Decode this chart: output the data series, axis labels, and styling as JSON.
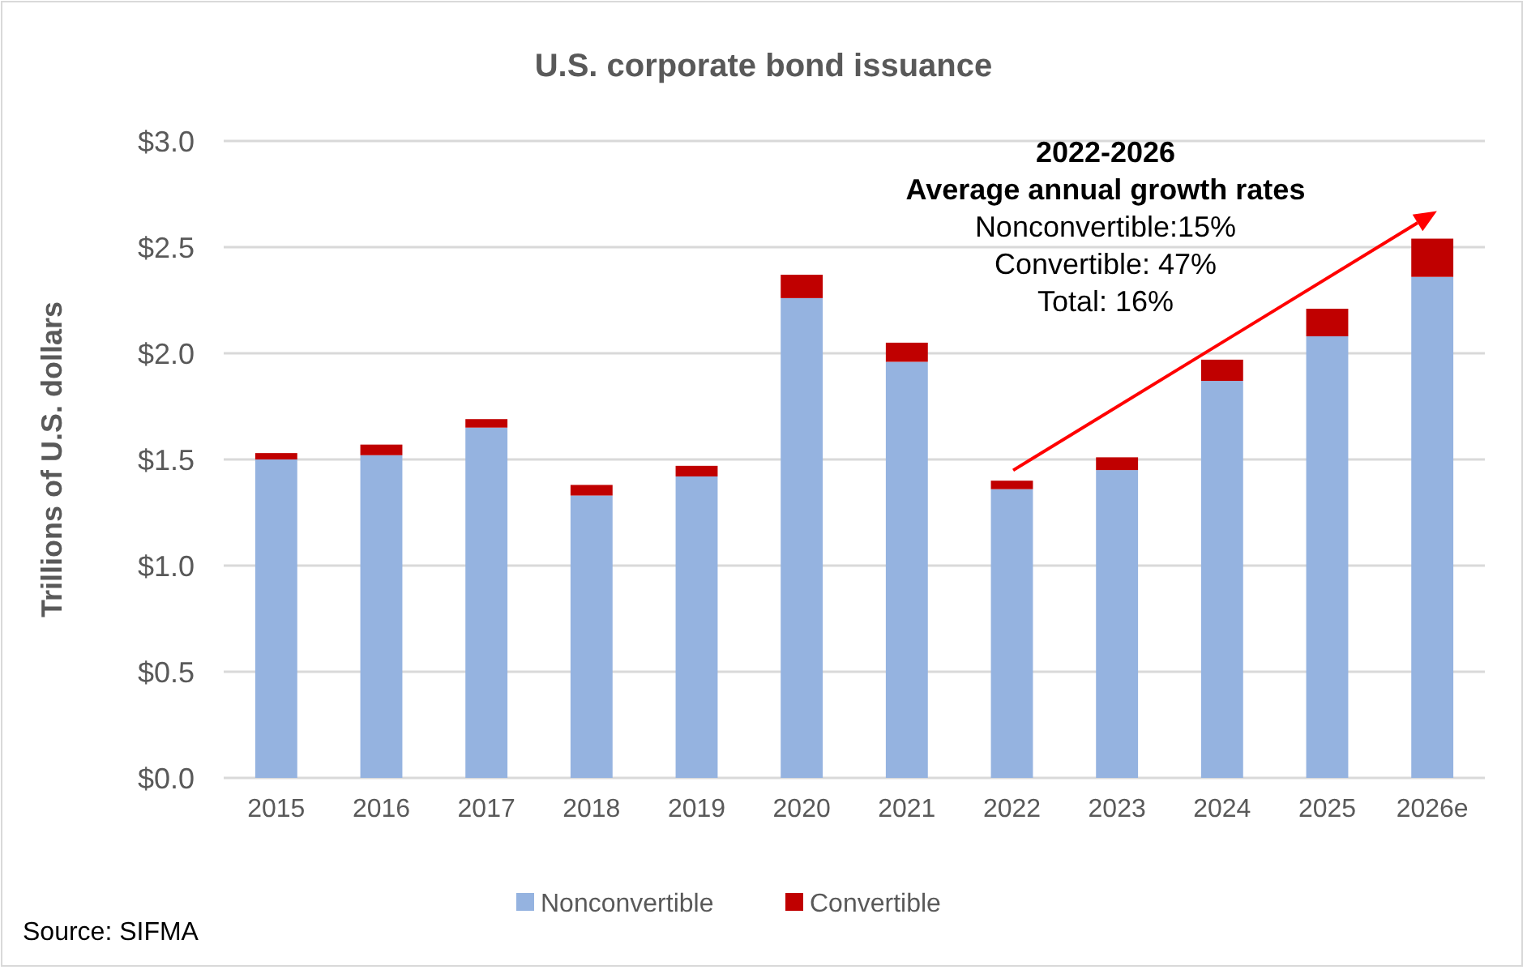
{
  "chart_data": {
    "type": "bar",
    "title": "U.S. corporate bond issuance",
    "ylabel": "Trillions of U.S. dollars",
    "stacked": true,
    "categories": [
      "2015",
      "2016",
      "2017",
      "2018",
      "2019",
      "2020",
      "2021",
      "2022",
      "2023",
      "2024",
      "2025",
      "2026e"
    ],
    "series": [
      {
        "name": "Nonconvertible",
        "color": "#95b3e0",
        "values": [
          1.5,
          1.52,
          1.65,
          1.33,
          1.42,
          2.26,
          1.96,
          1.36,
          1.45,
          1.87,
          2.08,
          2.36
        ]
      },
      {
        "name": "Convertible",
        "color": "#c00000",
        "values": [
          0.03,
          0.05,
          0.04,
          0.05,
          0.05,
          0.11,
          0.09,
          0.04,
          0.06,
          0.1,
          0.13,
          0.18
        ]
      }
    ],
    "ylim": [
      0,
      3
    ],
    "yticks": [
      {
        "value": 0,
        "label": "$0.0"
      },
      {
        "value": 0.5,
        "label": "$0.5"
      },
      {
        "value": 1,
        "label": "$1.0"
      },
      {
        "value": 1.5,
        "label": "$1.5"
      },
      {
        "value": 2,
        "label": "$2.0"
      },
      {
        "value": 2.5,
        "label": "$2.5"
      },
      {
        "value": 3,
        "label": "$3.0"
      }
    ],
    "grid": "y",
    "legend": "bottom",
    "annotations": [
      "2022-2026",
      "Average annual growth rates",
      "Nonconvertible:15%",
      "Convertible: 47%",
      "Total: 16%",
      "Source: SIFMA"
    ]
  }
}
